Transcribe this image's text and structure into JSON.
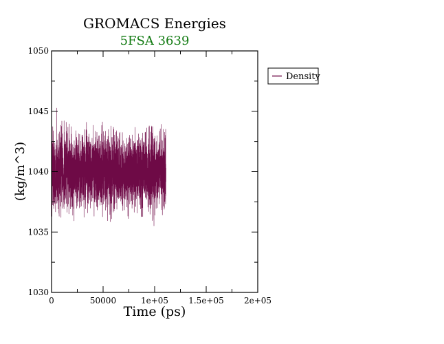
{
  "chart_data": {
    "type": "line",
    "title": "GROMACS Energies",
    "subtitle": "5FSA 3639",
    "xlabel": "Time (ps)",
    "ylabel": "(kg/m^3)",
    "xlim": [
      0,
      200000
    ],
    "ylim": [
      1030,
      1050
    ],
    "x_ticks": [
      0,
      50000,
      100000,
      150000,
      200000
    ],
    "x_tick_labels": [
      "0",
      "50000",
      "1e+05",
      "1.5e+05",
      "2e+05"
    ],
    "y_ticks": [
      1030,
      1035,
      1040,
      1045,
      1050
    ],
    "y_tick_labels": [
      "1030",
      "1035",
      "1040",
      "1045",
      "1050"
    ],
    "grid": false,
    "legend_position": "right",
    "series": [
      {
        "name": "Density",
        "color": "#6e0a46",
        "x_range": [
          0,
          111000
        ],
        "mean": 1040.0,
        "band_low": 1036.8,
        "band_high": 1043.2,
        "extreme_min": 1033.0,
        "extreme_max": 1047.3
      }
    ],
    "colors": {
      "title": "#000000",
      "subtitle": "#117a11",
      "series": "#6e0a46"
    }
  }
}
